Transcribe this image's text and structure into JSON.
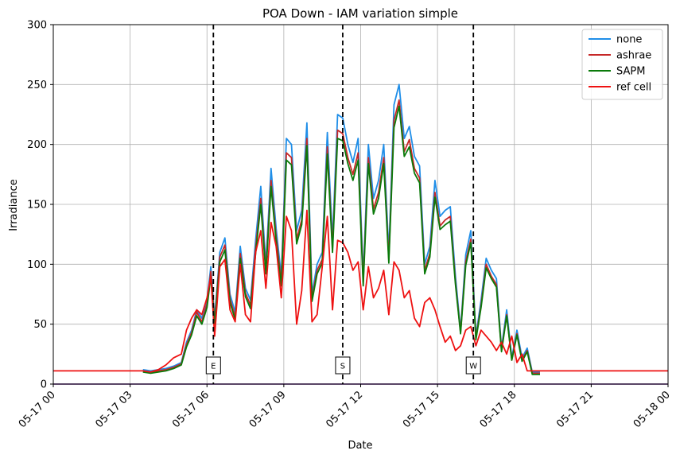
{
  "chart_data": {
    "type": "line",
    "title": "POA Down - IAM variation simple",
    "xlabel": "Date",
    "ylabel": "Irradiance",
    "xlim": [
      "2021-05-17 00:00",
      "2021-05-18 00:00"
    ],
    "ylim": [
      0,
      300
    ],
    "grid": true,
    "legend_position": "top-right",
    "x_tick_labels": [
      "05-17 00",
      "05-17 03",
      "05-17 06",
      "05-17 09",
      "05-17 12",
      "05-17 15",
      "05-17 18",
      "05-17 21",
      "05-18 00"
    ],
    "x_tick_hours": [
      0,
      3,
      6,
      9,
      12,
      15,
      18,
      21,
      24
    ],
    "y_ticks": [
      0,
      50,
      100,
      150,
      200,
      250,
      300
    ],
    "series": [
      {
        "name": "none",
        "color": "#1f8ee8",
        "x": [
          3.5,
          3.8,
          4.1,
          4.4,
          4.7,
          5.0,
          5.2,
          5.4,
          5.6,
          5.8,
          6.0,
          6.15,
          6.3,
          6.5,
          6.7,
          6.9,
          7.1,
          7.3,
          7.5,
          7.7,
          7.9,
          8.1,
          8.3,
          8.5,
          8.7,
          8.9,
          9.1,
          9.3,
          9.5,
          9.7,
          9.9,
          10.1,
          10.3,
          10.5,
          10.7,
          10.9,
          11.1,
          11.3,
          11.5,
          11.7,
          11.9,
          12.1,
          12.3,
          12.5,
          12.7,
          12.9,
          13.1,
          13.3,
          13.5,
          13.7,
          13.9,
          14.1,
          14.3,
          14.5,
          14.7,
          14.9,
          15.1,
          15.3,
          15.5,
          15.7,
          15.9,
          16.1,
          16.3,
          16.5,
          16.7,
          16.9,
          17.1,
          17.3,
          17.5,
          17.7,
          17.9,
          18.1,
          18.3,
          18.5,
          18.7,
          19.0
        ],
        "y": [
          12,
          11,
          12,
          13,
          15,
          18,
          35,
          45,
          62,
          55,
          70,
          98,
          55,
          110,
          122,
          75,
          60,
          115,
          80,
          70,
          120,
          165,
          100,
          180,
          130,
          90,
          205,
          200,
          128,
          145,
          218,
          75,
          100,
          110,
          210,
          120,
          225,
          222,
          200,
          185,
          205,
          90,
          200,
          155,
          170,
          200,
          110,
          233,
          250,
          205,
          215,
          190,
          182,
          100,
          115,
          170,
          140,
          145,
          148,
          90,
          45,
          108,
          128,
          40,
          70,
          105,
          95,
          88,
          30,
          62,
          22,
          45,
          22,
          30,
          10,
          10
        ]
      },
      {
        "name": "ashrae",
        "color": "#c62828",
        "x": [
          3.5,
          3.8,
          4.1,
          4.4,
          4.7,
          5.0,
          5.2,
          5.4,
          5.6,
          5.8,
          6.0,
          6.15,
          6.3,
          6.5,
          6.7,
          6.9,
          7.1,
          7.3,
          7.5,
          7.7,
          7.9,
          8.1,
          8.3,
          8.5,
          8.7,
          8.9,
          9.1,
          9.3,
          9.5,
          9.7,
          9.9,
          10.1,
          10.3,
          10.5,
          10.7,
          10.9,
          11.1,
          11.3,
          11.5,
          11.7,
          11.9,
          12.1,
          12.3,
          12.5,
          12.7,
          12.9,
          13.1,
          13.3,
          13.5,
          13.7,
          13.9,
          14.1,
          14.3,
          14.5,
          14.7,
          14.9,
          15.1,
          15.3,
          15.5,
          15.7,
          15.9,
          16.1,
          16.3,
          16.5,
          16.7,
          16.9,
          17.1,
          17.3,
          17.5,
          17.7,
          17.9,
          18.1,
          18.3,
          18.5,
          18.7,
          19.0
        ],
        "y": [
          11,
          10,
          11,
          12,
          14,
          17,
          33,
          43,
          60,
          52,
          67,
          94,
          52,
          106,
          116,
          71,
          56,
          109,
          76,
          66,
          113,
          155,
          95,
          170,
          123,
          85,
          193,
          189,
          121,
          137,
          205,
          71,
          95,
          104,
          198,
          113,
          212,
          209,
          189,
          175,
          193,
          85,
          189,
          146,
          160,
          189,
          104,
          220,
          237,
          194,
          204,
          180,
          172,
          95,
          109,
          160,
          132,
          137,
          140,
          85,
          43,
          102,
          121,
          38,
          66,
          100,
          90,
          83,
          28,
          58,
          20,
          42,
          20,
          28,
          9,
          9
        ]
      },
      {
        "name": "SAPM",
        "color": "#0a7a0a",
        "x": [
          3.5,
          3.8,
          4.1,
          4.4,
          4.7,
          5.0,
          5.2,
          5.4,
          5.6,
          5.8,
          6.0,
          6.15,
          6.3,
          6.5,
          6.7,
          6.9,
          7.1,
          7.3,
          7.5,
          7.7,
          7.9,
          8.1,
          8.3,
          8.5,
          8.7,
          8.9,
          9.1,
          9.3,
          9.5,
          9.7,
          9.9,
          10.1,
          10.3,
          10.5,
          10.7,
          10.9,
          11.1,
          11.3,
          11.5,
          11.7,
          11.9,
          12.1,
          12.3,
          12.5,
          12.7,
          12.9,
          13.1,
          13.3,
          13.5,
          13.7,
          13.9,
          14.1,
          14.3,
          14.5,
          14.7,
          14.9,
          15.1,
          15.3,
          15.5,
          15.7,
          15.9,
          16.1,
          16.3,
          16.5,
          16.7,
          16.9,
          17.1,
          17.3,
          17.5,
          17.7,
          17.9,
          18.1,
          18.3,
          18.5,
          18.7,
          19.0
        ],
        "y": [
          10,
          9,
          10,
          11,
          13,
          16,
          31,
          41,
          57,
          50,
          64,
          90,
          50,
          102,
          112,
          68,
          54,
          105,
          73,
          63,
          109,
          150,
          92,
          165,
          119,
          82,
          187,
          183,
          117,
          133,
          199,
          69,
          92,
          101,
          192,
          110,
          205,
          203,
          184,
          170,
          187,
          82,
          184,
          142,
          155,
          184,
          101,
          214,
          232,
          190,
          198,
          176,
          168,
          92,
          106,
          156,
          129,
          133,
          136,
          83,
          42,
          99,
          118,
          37,
          64,
          97,
          88,
          81,
          27,
          57,
          20,
          41,
          19,
          27,
          8,
          8
        ]
      },
      {
        "name": "ref cell",
        "color": "#ee1111",
        "x": [
          0,
          3.5,
          3.8,
          4.1,
          4.4,
          4.7,
          5.0,
          5.2,
          5.4,
          5.6,
          5.8,
          6.0,
          6.15,
          6.3,
          6.5,
          6.7,
          6.9,
          7.1,
          7.3,
          7.5,
          7.7,
          7.9,
          8.1,
          8.3,
          8.5,
          8.7,
          8.9,
          9.1,
          9.3,
          9.5,
          9.7,
          9.9,
          10.1,
          10.3,
          10.5,
          10.7,
          10.9,
          11.1,
          11.3,
          11.5,
          11.7,
          11.9,
          12.1,
          12.3,
          12.5,
          12.7,
          12.9,
          13.1,
          13.3,
          13.5,
          13.7,
          13.9,
          14.1,
          14.3,
          14.5,
          14.7,
          14.9,
          15.1,
          15.3,
          15.5,
          15.7,
          15.9,
          16.1,
          16.3,
          16.5,
          16.7,
          16.9,
          17.1,
          17.3,
          17.5,
          17.7,
          17.9,
          18.1,
          18.3,
          18.5,
          18.7,
          19.0,
          24
        ],
        "y": [
          11,
          11,
          10,
          12,
          16,
          22,
          25,
          45,
          55,
          62,
          58,
          72,
          90,
          40,
          98,
          104,
          62,
          52,
          100,
          58,
          52,
          110,
          128,
          80,
          135,
          115,
          72,
          140,
          128,
          50,
          78,
          145,
          52,
          58,
          98,
          140,
          62,
          120,
          118,
          110,
          95,
          102,
          62,
          98,
          72,
          80,
          95,
          58,
          102,
          95,
          72,
          78,
          55,
          48,
          68,
          72,
          62,
          48,
          35,
          40,
          28,
          32,
          45,
          48,
          32,
          45,
          40,
          35,
          28,
          35,
          25,
          40,
          18,
          25,
          11,
          11,
          11,
          11
        ]
      }
    ],
    "vlines": [
      {
        "x": 6.25,
        "label": "E"
      },
      {
        "x": 11.3,
        "label": "S"
      },
      {
        "x": 16.4,
        "label": "W"
      }
    ]
  }
}
